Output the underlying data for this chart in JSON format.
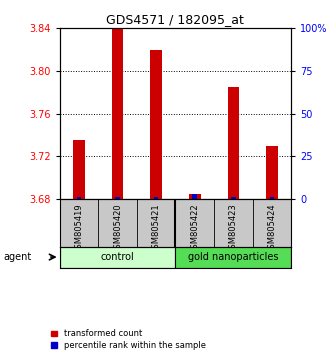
{
  "title": "GDS4571 / 182095_at",
  "samples": [
    "GSM805419",
    "GSM805420",
    "GSM805421",
    "GSM805422",
    "GSM805423",
    "GSM805424"
  ],
  "red_values": [
    3.735,
    3.84,
    3.82,
    3.685,
    3.785,
    3.73
  ],
  "blue_values_pct": [
    1.5,
    1.5,
    1.5,
    3.0,
    1.5,
    1.5
  ],
  "ylim_left": [
    3.68,
    3.84
  ],
  "ylim_right": [
    0,
    100
  ],
  "yticks_left": [
    3.68,
    3.72,
    3.76,
    3.8,
    3.84
  ],
  "yticks_right": [
    0,
    25,
    50,
    75,
    100
  ],
  "ytick_labels_right": [
    "0",
    "25",
    "50",
    "75",
    "100%"
  ],
  "groups": [
    {
      "label": "control",
      "indices": [
        0,
        1,
        2
      ],
      "color": "#ccffcc"
    },
    {
      "label": "gold nanoparticles",
      "indices": [
        3,
        4,
        5
      ],
      "color": "#55dd55"
    }
  ],
  "red_bar_width": 0.3,
  "blue_bar_width": 0.12,
  "red_color": "#cc0000",
  "blue_color": "#0000cc",
  "bg_color": "#ffffff",
  "agent_label": "agent",
  "legend_red": "transformed count",
  "legend_blue": "percentile rank within the sample",
  "label_row_color": "#c8c8c8",
  "figsize": [
    3.31,
    3.54
  ],
  "dpi": 100
}
